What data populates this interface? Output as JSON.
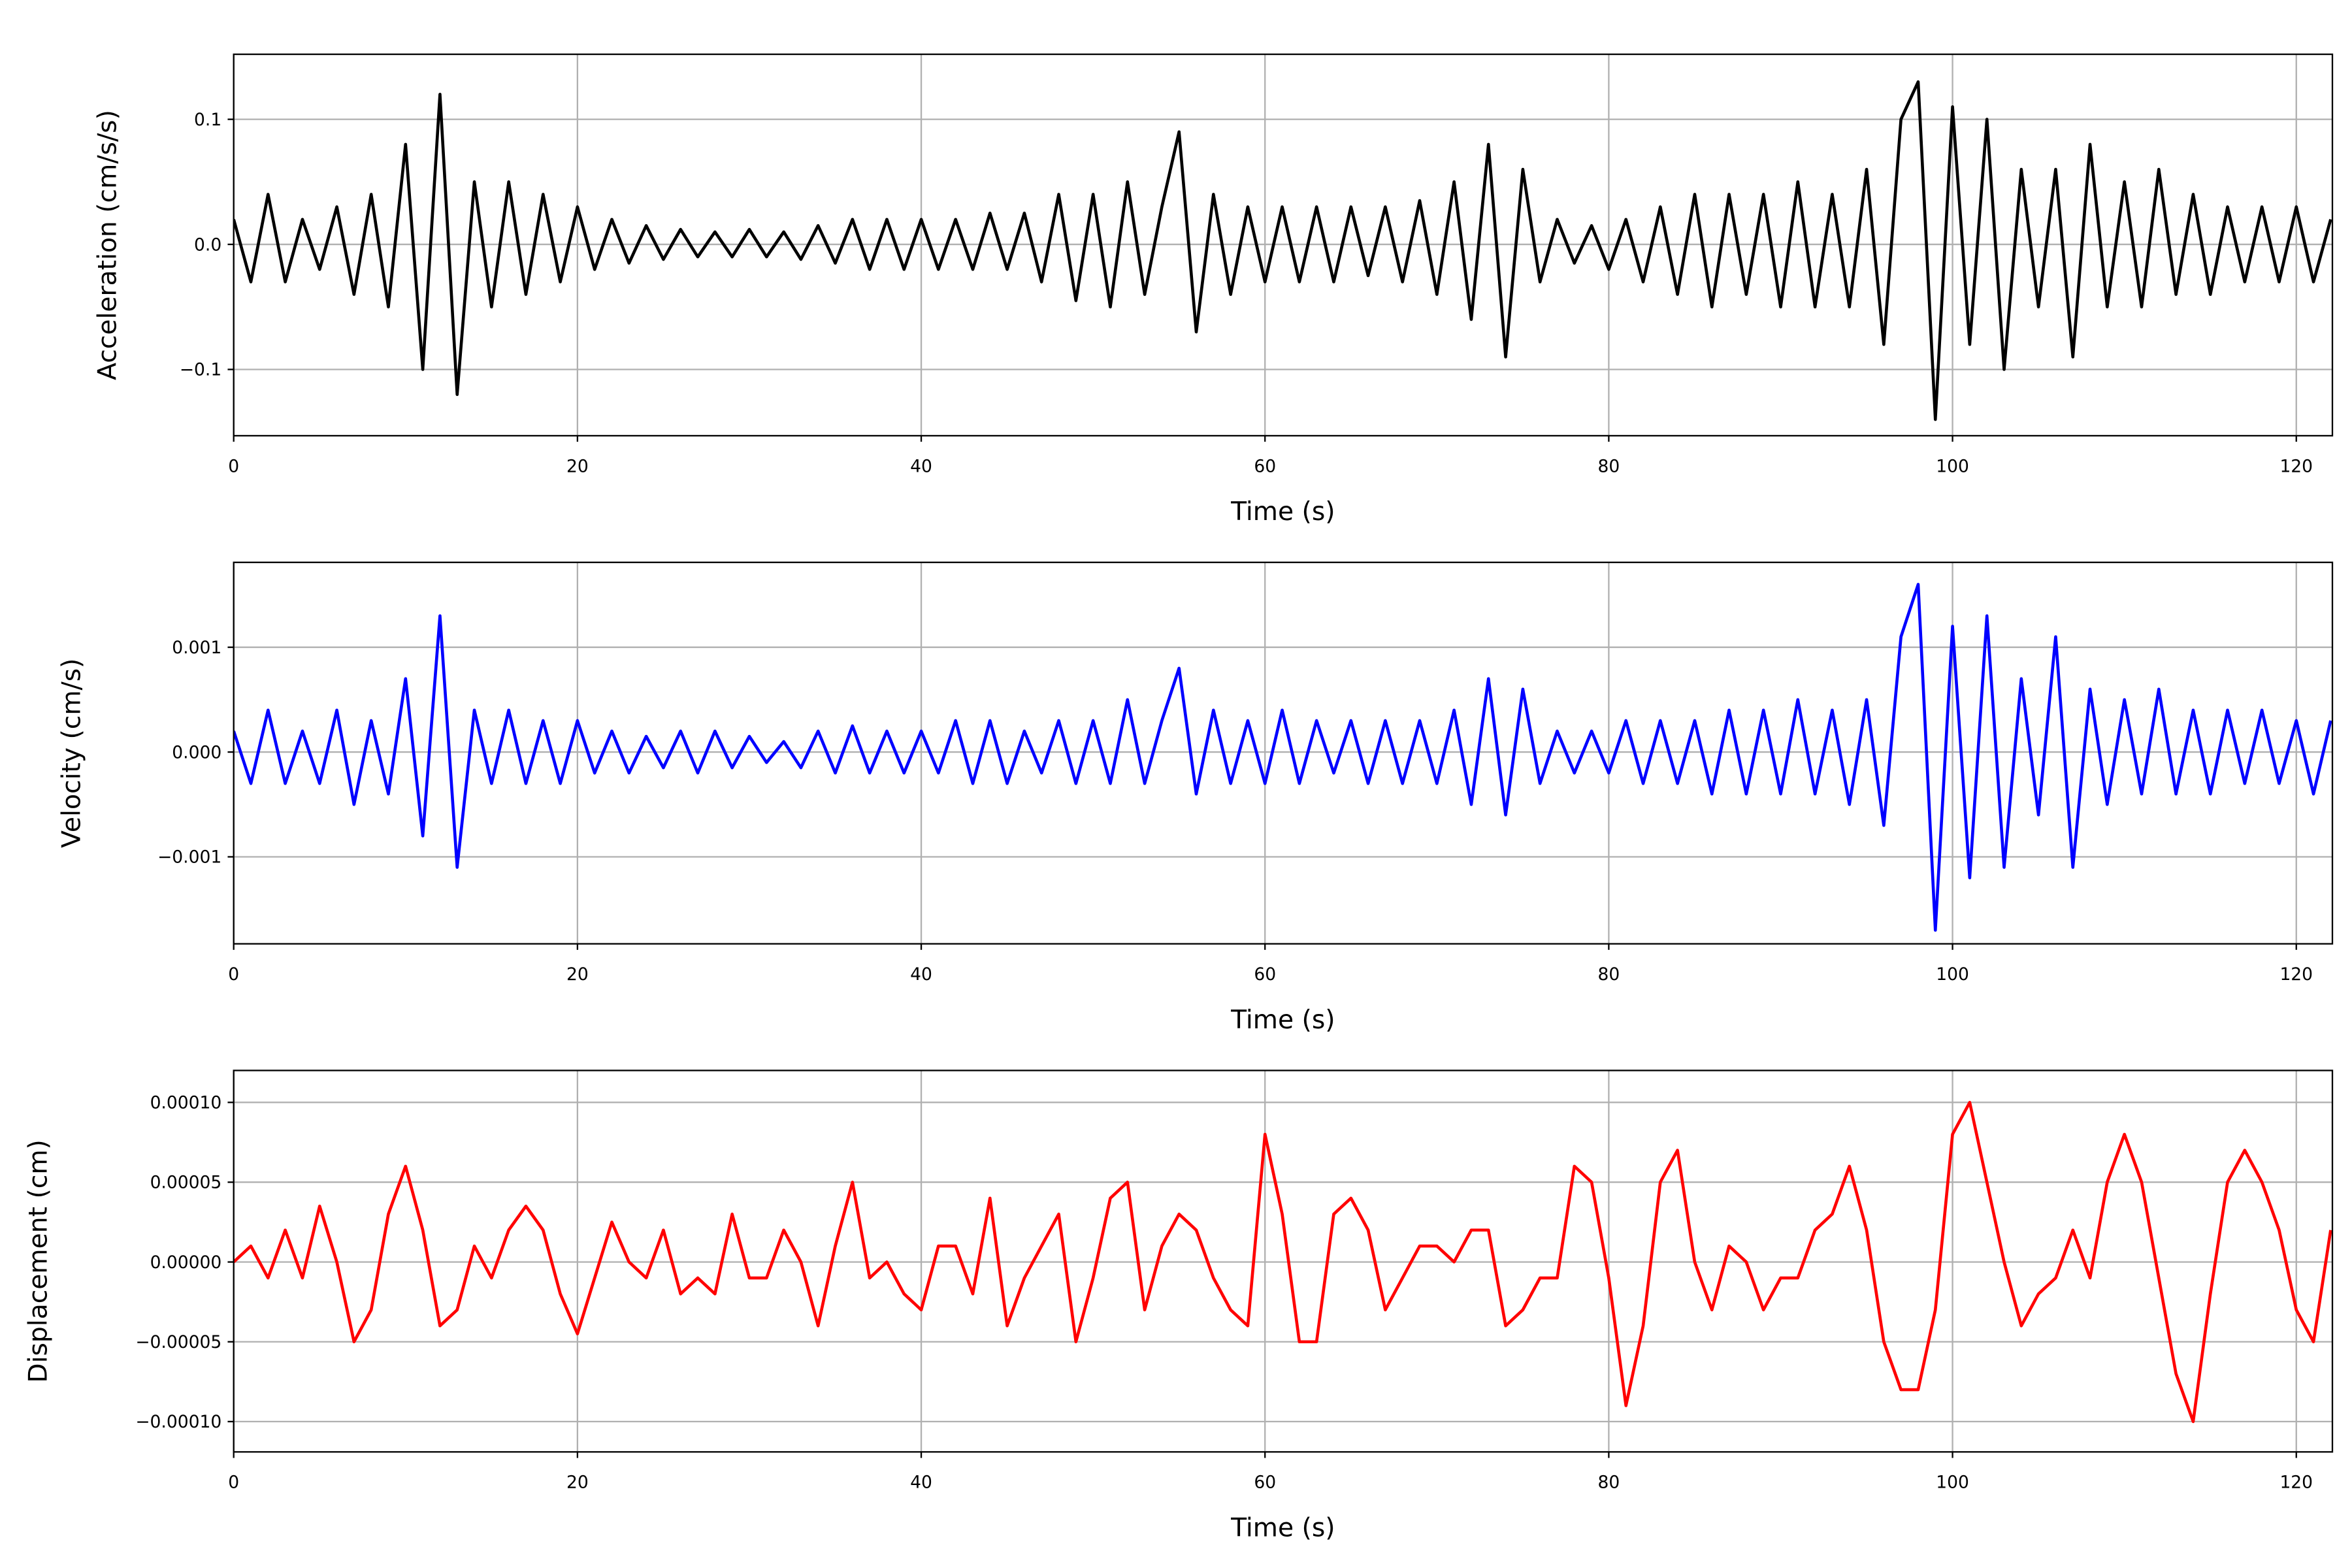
{
  "chart_data": [
    {
      "type": "line",
      "xlabel": "Time (s)",
      "ylabel": "Acceleration (cm/s/s)",
      "color": "#000000",
      "grid": true,
      "xlim": [
        0,
        122.1
      ],
      "ylim": [
        -0.153,
        0.152
      ],
      "xticks": [
        0,
        20,
        40,
        60,
        80,
        100,
        120
      ],
      "yticks": [
        {
          "value": -0.1,
          "label": "−0.1"
        },
        {
          "value": 0,
          "label": "0.0"
        },
        0.1
      ],
      "x": [
        0,
        1,
        2,
        3,
        4,
        5,
        6,
        7,
        8,
        9,
        10,
        11,
        12,
        13,
        14,
        15,
        16,
        17,
        18,
        19,
        20,
        21,
        22,
        23,
        24,
        25,
        26,
        27,
        28,
        29,
        30,
        31,
        32,
        33,
        34,
        35,
        36,
        37,
        38,
        39,
        40,
        41,
        42,
        43,
        44,
        45,
        46,
        47,
        48,
        49,
        50,
        51,
        52,
        53,
        54,
        55,
        56,
        57,
        58,
        59,
        60,
        61,
        62,
        63,
        64,
        65,
        66,
        67,
        68,
        69,
        70,
        71,
        72,
        73,
        74,
        75,
        76,
        77,
        78,
        79,
        80,
        81,
        82,
        83,
        84,
        85,
        86,
        87,
        88,
        89,
        90,
        91,
        92,
        93,
        94,
        95,
        96,
        97,
        98,
        99,
        100,
        101,
        102,
        103,
        104,
        105,
        106,
        107,
        108,
        109,
        110,
        111,
        112,
        113,
        114,
        115,
        116,
        117,
        118,
        119,
        120,
        121,
        122
      ],
      "values": [
        0.02,
        -0.03,
        0.04,
        -0.03,
        0.02,
        -0.02,
        0.03,
        -0.04,
        0.04,
        -0.05,
        0.08,
        -0.1,
        0.12,
        -0.12,
        0.05,
        -0.05,
        0.05,
        -0.04,
        0.04,
        -0.03,
        0.03,
        -0.02,
        0.02,
        -0.015,
        0.015,
        -0.012,
        0.012,
        -0.01,
        0.01,
        -0.01,
        0.012,
        -0.01,
        0.01,
        -0.012,
        0.015,
        -0.015,
        0.02,
        -0.02,
        0.02,
        -0.02,
        0.02,
        -0.02,
        0.02,
        -0.02,
        0.025,
        -0.02,
        0.025,
        -0.03,
        0.04,
        -0.045,
        0.04,
        -0.05,
        0.05,
        -0.04,
        0.03,
        0.09,
        -0.07,
        0.04,
        -0.04,
        0.03,
        -0.03,
        0.03,
        -0.03,
        0.03,
        -0.03,
        0.03,
        -0.025,
        0.03,
        -0.03,
        0.035,
        -0.04,
        0.05,
        -0.06,
        0.08,
        -0.09,
        0.06,
        -0.03,
        0.02,
        -0.015,
        0.015,
        -0.02,
        0.02,
        -0.03,
        0.03,
        -0.04,
        0.04,
        -0.05,
        0.04,
        -0.04,
        0.04,
        -0.05,
        0.05,
        -0.05,
        0.04,
        -0.05,
        0.06,
        -0.08,
        0.1,
        0.13,
        -0.14,
        0.11,
        -0.08,
        0.1,
        -0.1,
        0.06,
        -0.05,
        0.06,
        -0.09,
        0.08,
        -0.05,
        0.05,
        -0.05,
        0.06,
        -0.04,
        0.04,
        -0.04,
        0.03,
        -0.03,
        0.03,
        -0.03,
        0.03,
        -0.03,
        0.02
      ]
    },
    {
      "type": "line",
      "xlabel": "Time (s)",
      "ylabel": "Velocity (cm/s)",
      "color": "#0000ff",
      "grid": true,
      "xlim": [
        0,
        122.1
      ],
      "ylim": [
        -0.00183,
        0.00181
      ],
      "xticks": [
        0,
        20,
        40,
        60,
        80,
        100,
        120
      ],
      "yticks": [
        {
          "value": -0.001,
          "label": "−0.001"
        },
        {
          "value": 0,
          "label": "0.000"
        },
        0.001
      ],
      "x": [
        0,
        1,
        2,
        3,
        4,
        5,
        6,
        7,
        8,
        9,
        10,
        11,
        12,
        13,
        14,
        15,
        16,
        17,
        18,
        19,
        20,
        21,
        22,
        23,
        24,
        25,
        26,
        27,
        28,
        29,
        30,
        31,
        32,
        33,
        34,
        35,
        36,
        37,
        38,
        39,
        40,
        41,
        42,
        43,
        44,
        45,
        46,
        47,
        48,
        49,
        50,
        51,
        52,
        53,
        54,
        55,
        56,
        57,
        58,
        59,
        60,
        61,
        62,
        63,
        64,
        65,
        66,
        67,
        68,
        69,
        70,
        71,
        72,
        73,
        74,
        75,
        76,
        77,
        78,
        79,
        80,
        81,
        82,
        83,
        84,
        85,
        86,
        87,
        88,
        89,
        90,
        91,
        92,
        93,
        94,
        95,
        96,
        97,
        98,
        99,
        100,
        101,
        102,
        103,
        104,
        105,
        106,
        107,
        108,
        109,
        110,
        111,
        112,
        113,
        114,
        115,
        116,
        117,
        118,
        119,
        120,
        121,
        122
      ],
      "values": [
        0.0002,
        -0.0003,
        0.0004,
        -0.0003,
        0.0002,
        -0.0003,
        0.0004,
        -0.0005,
        0.0003,
        -0.0004,
        0.0007,
        -0.0008,
        0.0013,
        -0.0011,
        0.0004,
        -0.0003,
        0.0004,
        -0.0003,
        0.0003,
        -0.0003,
        0.0003,
        -0.0002,
        0.0002,
        -0.0002,
        0.00015,
        -0.00015,
        0.0002,
        -0.0002,
        0.0002,
        -0.00015,
        0.00015,
        -0.0001,
        0.0001,
        -0.00015,
        0.0002,
        -0.0002,
        0.00025,
        -0.0002,
        0.0002,
        -0.0002,
        0.0002,
        -0.0002,
        0.0003,
        -0.0003,
        0.0003,
        -0.0003,
        0.0002,
        -0.0002,
        0.0003,
        -0.0003,
        0.0003,
        -0.0003,
        0.0005,
        -0.0003,
        0.0003,
        0.0008,
        -0.0004,
        0.0004,
        -0.0003,
        0.0003,
        -0.0003,
        0.0004,
        -0.0003,
        0.0003,
        -0.0002,
        0.0003,
        -0.0003,
        0.0003,
        -0.0003,
        0.0003,
        -0.0003,
        0.0004,
        -0.0005,
        0.0007,
        -0.0006,
        0.0006,
        -0.0003,
        0.0002,
        -0.0002,
        0.0002,
        -0.0002,
        0.0003,
        -0.0003,
        0.0003,
        -0.0003,
        0.0003,
        -0.0004,
        0.0004,
        -0.0004,
        0.0004,
        -0.0004,
        0.0005,
        -0.0004,
        0.0004,
        -0.0005,
        0.0005,
        -0.0007,
        0.0011,
        0.0016,
        -0.0017,
        0.0012,
        -0.0012,
        0.0013,
        -0.0011,
        0.0007,
        -0.0006,
        0.0011,
        -0.0011,
        0.0006,
        -0.0005,
        0.0005,
        -0.0004,
        0.0006,
        -0.0004,
        0.0004,
        -0.0004,
        0.0004,
        -0.0003,
        0.0004,
        -0.0003,
        0.0003,
        -0.0004,
        0.0003
      ]
    },
    {
      "type": "line",
      "xlabel": "Time (s)",
      "ylabel": "Displacement (cm)",
      "color": "#ff0000",
      "grid": true,
      "xlim": [
        0,
        122.1
      ],
      "ylim": [
        -0.000119,
        0.00012
      ],
      "xticks": [
        0,
        20,
        40,
        60,
        80,
        100,
        120
      ],
      "yticks": [
        {
          "value": -0.0001,
          "label": "−0.00010"
        },
        {
          "value": -5e-05,
          "label": "−0.00005"
        },
        {
          "value": 0,
          "label": "0.00000"
        },
        {
          "value": 5e-05,
          "label": "0.00005"
        },
        {
          "value": 0.0001,
          "label": "0.00010"
        }
      ],
      "x": [
        0,
        1,
        2,
        3,
        4,
        5,
        6,
        7,
        8,
        9,
        10,
        11,
        12,
        13,
        14,
        15,
        16,
        17,
        18,
        19,
        20,
        21,
        22,
        23,
        24,
        25,
        26,
        27,
        28,
        29,
        30,
        31,
        32,
        33,
        34,
        35,
        36,
        37,
        38,
        39,
        40,
        41,
        42,
        43,
        44,
        45,
        46,
        47,
        48,
        49,
        50,
        51,
        52,
        53,
        54,
        55,
        56,
        57,
        58,
        59,
        60,
        61,
        62,
        63,
        64,
        65,
        66,
        67,
        68,
        69,
        70,
        71,
        72,
        73,
        74,
        75,
        76,
        77,
        78,
        79,
        80,
        81,
        82,
        83,
        84,
        85,
        86,
        87,
        88,
        89,
        90,
        91,
        92,
        93,
        94,
        95,
        96,
        97,
        98,
        99,
        100,
        101,
        102,
        103,
        104,
        105,
        106,
        107,
        108,
        109,
        110,
        111,
        112,
        113,
        114,
        115,
        116,
        117,
        118,
        119,
        120,
        121,
        122
      ],
      "values": [
        0,
        1e-05,
        -1e-05,
        2e-05,
        -1e-05,
        3.5e-05,
        0,
        -5e-05,
        -3e-05,
        3e-05,
        6e-05,
        2e-05,
        -4e-05,
        -3e-05,
        1e-05,
        -1e-05,
        2e-05,
        3.5e-05,
        2e-05,
        -2e-05,
        -4.5e-05,
        -1e-05,
        2.5e-05,
        0,
        -1e-05,
        2e-05,
        -2e-05,
        -1e-05,
        -2e-05,
        3e-05,
        -1e-05,
        -1e-05,
        2e-05,
        0,
        -4e-05,
        1e-05,
        5e-05,
        -1e-05,
        0,
        -2e-05,
        -3e-05,
        1e-05,
        1e-05,
        -2e-05,
        4e-05,
        -4e-05,
        -1e-05,
        1e-05,
        3e-05,
        -5e-05,
        -1e-05,
        4e-05,
        5e-05,
        -3e-05,
        1e-05,
        3e-05,
        2e-05,
        -1e-05,
        -3e-05,
        -4e-05,
        8e-05,
        3e-05,
        -5e-05,
        -5e-05,
        3e-05,
        4e-05,
        2e-05,
        -3e-05,
        -1e-05,
        1e-05,
        1e-05,
        0,
        2e-05,
        2e-05,
        -4e-05,
        -3e-05,
        -1e-05,
        -1e-05,
        6e-05,
        5e-05,
        -1e-05,
        -9e-05,
        -4e-05,
        5e-05,
        7e-05,
        0,
        -3e-05,
        1e-05,
        0,
        -3e-05,
        -1e-05,
        -1e-05,
        2e-05,
        3e-05,
        6e-05,
        2e-05,
        -5e-05,
        -8e-05,
        -8e-05,
        -3e-05,
        8e-05,
        0.0001,
        5e-05,
        0,
        -4e-05,
        -2e-05,
        -1e-05,
        2e-05,
        -1e-05,
        5e-05,
        8e-05,
        5e-05,
        -1e-05,
        -7e-05,
        -0.0001,
        -2e-05,
        5e-05,
        7e-05,
        5e-05,
        2e-05,
        -3e-05,
        -5e-05,
        2e-05
      ]
    }
  ]
}
